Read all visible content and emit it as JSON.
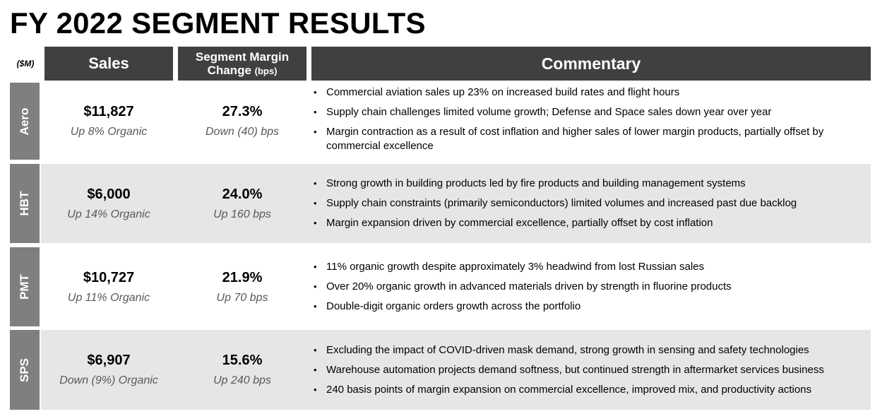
{
  "title": "FY 2022 SEGMENT RESULTS",
  "unit_label": "($M)",
  "headers": {
    "sales": "Sales",
    "margin_line1": "Segment Margin",
    "margin_line2": "Change",
    "margin_unit": "(bps)",
    "commentary": "Commentary"
  },
  "colors": {
    "header_bg": "#404040",
    "segment_tab": "#7f7f7f",
    "row_shade": "#e6e6e6"
  },
  "segments": [
    {
      "name": "Aero",
      "sales": "$11,827",
      "sales_sub": "Up 8% Organic",
      "margin": "27.3%",
      "margin_sub": "Down (40) bps",
      "commentary": [
        "Commercial aviation sales up 23% on increased build rates and flight hours",
        "Supply chain challenges limited volume growth; Defense and Space sales down year over year",
        "Margin contraction as a result of cost inflation and higher sales of lower margin products, partially offset by commercial excellence"
      ]
    },
    {
      "name": "HBT",
      "sales": "$6,000",
      "sales_sub": "Up 14% Organic",
      "margin": "24.0%",
      "margin_sub": "Up 160 bps",
      "commentary": [
        "Strong growth in building products led by fire products and building management systems",
        "Supply chain constraints (primarily semiconductors) limited volumes and increased past due backlog",
        "Margin expansion driven by commercial excellence, partially offset by cost inflation"
      ]
    },
    {
      "name": "PMT",
      "sales": "$10,727",
      "sales_sub": "Up 11% Organic",
      "margin": "21.9%",
      "margin_sub": "Up 70 bps",
      "commentary": [
        "11% organic growth despite approximately 3% headwind from lost Russian sales",
        "Over 20% organic growth in advanced materials driven by strength in fluorine products",
        "Double-digit organic orders growth across the portfolio"
      ]
    },
    {
      "name": "SPS",
      "sales": "$6,907",
      "sales_sub": "Down (9%) Organic",
      "margin": "15.6%",
      "margin_sub": "Up 240 bps",
      "commentary": [
        "Excluding the impact of COVID-driven mask demand, strong growth in sensing and safety technologies",
        "Warehouse automation projects demand softness, but continued strength in aftermarket services business",
        "240 basis points of margin expansion on commercial excellence, improved mix, and productivity actions"
      ]
    }
  ]
}
